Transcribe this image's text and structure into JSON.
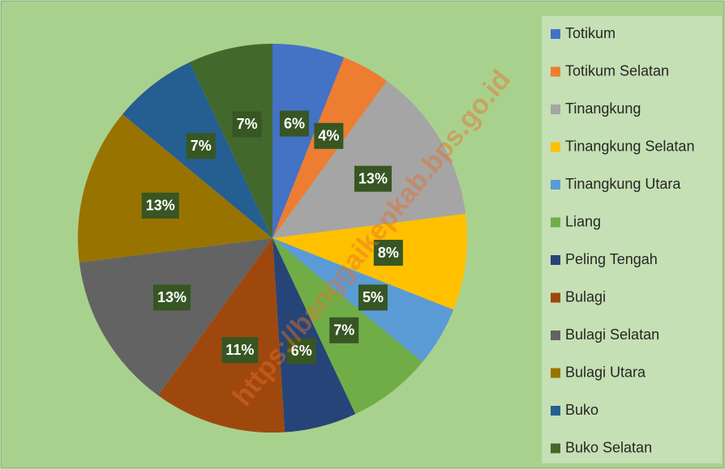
{
  "chart_data": {
    "type": "pie",
    "categories": [
      "Totikum",
      "Totikum Selatan",
      "Tinangkung",
      "Tinangkung Selatan",
      "Tinangkung Utara",
      "Liang",
      "Peling Tengah",
      "Bulagi",
      "Bulagi Selatan",
      "Bulagi Utara",
      "Buko",
      "Buko Selatan"
    ],
    "values": [
      6,
      4,
      13,
      8,
      5,
      7,
      6,
      11,
      13,
      13,
      7,
      7
    ],
    "value_labels": [
      "6%",
      "4%",
      "13%",
      "8%",
      "5%",
      "7%",
      "6%",
      "11%",
      "13%",
      "13%",
      "7%",
      "7%"
    ],
    "colors": [
      "#4472c4",
      "#ed7d31",
      "#a5a5a5",
      "#ffc000",
      "#5b9bd5",
      "#70ad47",
      "#264478",
      "#9e480e",
      "#636363",
      "#997300",
      "#255e91",
      "#43682b"
    ],
    "legend": "right",
    "watermark": "https://banggaikepkab.bps.go.id"
  }
}
